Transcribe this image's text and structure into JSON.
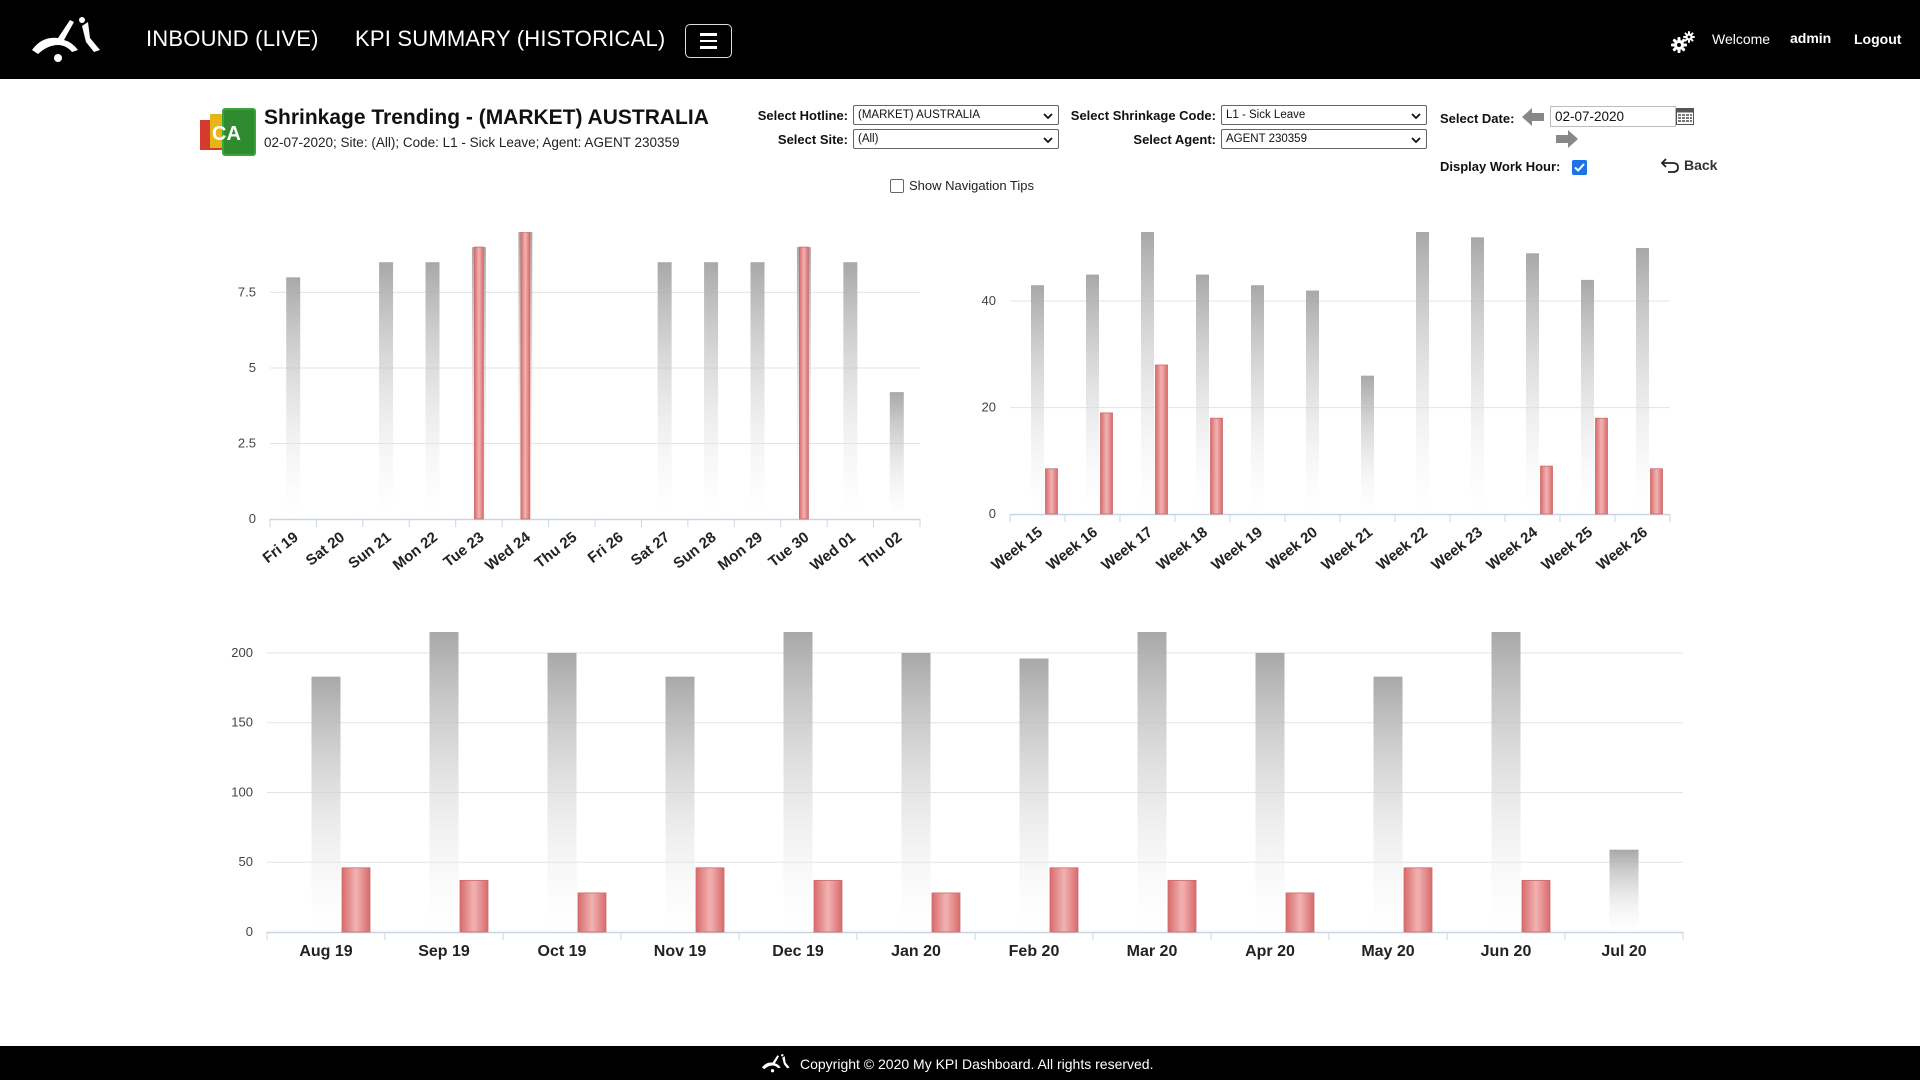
{
  "header": {
    "nav": [
      "INBOUND (LIVE)",
      "KPI SUMMARY (HISTORICAL)"
    ],
    "welcome": "Welcome",
    "user": "admin",
    "logout": "Logout"
  },
  "page": {
    "title": "Shrinkage Trending - (MARKET) AUSTRALIA",
    "subtitle": "02-07-2020; Site: (All); Code: L1 - Sick Leave; Agent: AGENT 230359",
    "icon_text": "CA"
  },
  "filters": {
    "hotline_label": "Select Hotline:",
    "hotline_value": "(MARKET) AUSTRALIA",
    "site_label": "Select Site:",
    "site_value": "(All)",
    "code_label": "Select Shrinkage Code:",
    "code_value": "L1 - Sick Leave",
    "agent_label": "Select Agent:",
    "agent_value": "AGENT 230359",
    "date_label": "Select Date:",
    "date_value": "02-07-2020",
    "workhour_label": "Display Work Hour:",
    "workhour_checked": true,
    "back_label": "Back",
    "nav_tips_label": "Show Navigation Tips"
  },
  "colors": {
    "header_bg": "#000000",
    "gray_bar": "#a8a8a8",
    "red_bar": "#e08585"
  },
  "chart_data": [
    {
      "type": "bar",
      "name": "daily",
      "categories": [
        "Fri 19",
        "Sat 20",
        "Sun 21",
        "Mon 22",
        "Tue 23",
        "Wed 24",
        "Thu 25",
        "Fri 26",
        "Sat 27",
        "Sun 28",
        "Mon 29",
        "Tue 30",
        "Wed 01",
        "Thu 02"
      ],
      "series": [
        {
          "values": [
            8,
            0,
            8.5,
            8.5,
            9,
            9.5,
            0,
            0,
            8.5,
            8.5,
            8.5,
            9,
            8.5,
            4.2
          ]
        },
        {
          "values": [
            0,
            0,
            0,
            0,
            9,
            9.5,
            0,
            0,
            0,
            0,
            0,
            9,
            0,
            0
          ]
        }
      ],
      "yticks": [
        "0",
        "2.5",
        "5",
        "7.5"
      ],
      "ylim": [
        0,
        9.5
      ]
    },
    {
      "type": "bar",
      "name": "weekly",
      "categories": [
        "Week 15",
        "Week 16",
        "Week 17",
        "Week 18",
        "Week 19",
        "Week 20",
        "Week 21",
        "Week 22",
        "Week 23",
        "Week 24",
        "Week 25",
        "Week 26"
      ],
      "series": [
        {
          "values": [
            43,
            45,
            53,
            45,
            43,
            42,
            26,
            53,
            52,
            49,
            44,
            50
          ]
        },
        {
          "values": [
            8.5,
            19,
            28,
            18,
            0,
            0,
            0,
            0,
            0,
            9,
            18,
            8.5
          ]
        }
      ],
      "yticks": [
        "0",
        "20",
        "40"
      ],
      "ylim": [
        0,
        53
      ]
    },
    {
      "type": "bar",
      "name": "monthly",
      "categories": [
        "Aug 19",
        "Sep 19",
        "Oct 19",
        "Nov 19",
        "Dec 19",
        "Jan 20",
        "Feb 20",
        "Mar 20",
        "Apr 20",
        "May 20",
        "Jun 20",
        "Jul 20"
      ],
      "series": [
        {
          "values": [
            183,
            215,
            200,
            183,
            215,
            200,
            196,
            215,
            200,
            183,
            215,
            59
          ]
        },
        {
          "values": [
            46,
            37,
            28,
            46,
            37,
            28,
            46,
            37,
            28,
            46,
            37,
            0
          ]
        }
      ],
      "yticks": [
        "0",
        "50",
        "100",
        "150",
        "200"
      ],
      "ylim": [
        0,
        215
      ]
    }
  ],
  "footer": {
    "text": "Copyright © 2020 My KPI Dashboard. All rights reserved."
  }
}
